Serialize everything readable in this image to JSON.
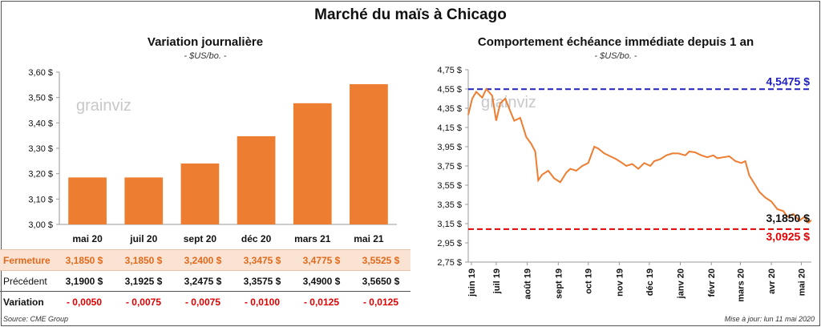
{
  "title": "Marché du maïs à Chicago",
  "left": {
    "title": "Variation journalière",
    "units": "- $US/bo. -",
    "watermark": "grainviz"
  },
  "right": {
    "title": "Comportement échéance immédiate depuis 1 an",
    "units": "- $US/bo. -",
    "watermark": "grainviz"
  },
  "table": {
    "rows": [
      {
        "label": "Fermeture",
        "values": [
          "3,1850 $",
          "3,1850 $",
          "3,2400 $",
          "3,3475 $",
          "3,4775 $",
          "3,5525 $"
        ]
      },
      {
        "label": "Précédent",
        "values": [
          "3,1900 $",
          "3,1925 $",
          "3,2475 $",
          "3,3575 $",
          "3,4900 $",
          "3,5650 $"
        ]
      },
      {
        "label": "Variation",
        "values": [
          "- 0,0050",
          "- 0,0075",
          "- 0,0075",
          "- 0,0100",
          "- 0,0125",
          "- 0,0125"
        ]
      }
    ]
  },
  "source": "Source: CME Group",
  "updated": "Mise à jour: lun 11 mai 2020",
  "colors": {
    "bar": "#ed7d31",
    "line": "#ed7d31",
    "high_line": "#2020c0",
    "low_line": "#e00000",
    "close_row_bg": "#fbe3d3"
  },
  "chart_data": [
    {
      "type": "bar",
      "title": "Variation journalière",
      "categories": [
        "mai 20",
        "juil 20",
        "sept 20",
        "déc 20",
        "mars 21",
        "mai 21"
      ],
      "values": [
        3.185,
        3.185,
        3.24,
        3.3475,
        3.4775,
        3.5525
      ],
      "ylim": [
        3.0,
        3.6
      ],
      "yticks": [
        "3,00 $",
        "3,10 $",
        "3,20 $",
        "3,30 $",
        "3,40 $",
        "3,50 $",
        "3,60 $"
      ],
      "grid": false
    },
    {
      "type": "line",
      "title": "Comportement échéance immédiate depuis 1 an",
      "ylim": [
        2.75,
        4.75
      ],
      "yticks": [
        "2,75 $",
        "2,95 $",
        "3,15 $",
        "3,35 $",
        "3,55 $",
        "3,75 $",
        "3,95 $",
        "4,15 $",
        "4,35 $",
        "4,55 $",
        "4,75 $"
      ],
      "xticks": [
        "juin 19",
        "juil 19",
        "août 19",
        "sept 19",
        "oct 19",
        "nov 19",
        "déc 19",
        "janv 20",
        "févr 20",
        "mars 20",
        "avr 20",
        "mai 20"
      ],
      "x": [
        "2019-06-03",
        "2019-06-07",
        "2019-06-11",
        "2019-06-17",
        "2019-06-21",
        "2019-06-27",
        "2019-07-01",
        "2019-07-05",
        "2019-07-10",
        "2019-07-15",
        "2019-07-19",
        "2019-07-25",
        "2019-07-31",
        "2019-08-05",
        "2019-08-09",
        "2019-08-12",
        "2019-08-16",
        "2019-08-22",
        "2019-08-28",
        "2019-09-03",
        "2019-09-09",
        "2019-09-13",
        "2019-09-19",
        "2019-09-25",
        "2019-10-01",
        "2019-10-07",
        "2019-10-11",
        "2019-10-17",
        "2019-10-23",
        "2019-10-29",
        "2019-11-04",
        "2019-11-08",
        "2019-11-14",
        "2019-11-20",
        "2019-11-26",
        "2019-12-02",
        "2019-12-06",
        "2019-12-12",
        "2019-12-18",
        "2019-12-24",
        "2019-12-30",
        "2020-01-06",
        "2020-01-10",
        "2020-01-16",
        "2020-01-22",
        "2020-01-28",
        "2020-02-03",
        "2020-02-07",
        "2020-02-13",
        "2020-02-19",
        "2020-02-25",
        "2020-03-02",
        "2020-03-06",
        "2020-03-10",
        "2020-03-16",
        "2020-03-20",
        "2020-03-26",
        "2020-04-01",
        "2020-04-07",
        "2020-04-13",
        "2020-04-17",
        "2020-04-23",
        "2020-04-29",
        "2020-05-04",
        "2020-05-08",
        "2020-05-11"
      ],
      "values": [
        4.28,
        4.45,
        4.52,
        4.46,
        4.55,
        4.48,
        4.22,
        4.4,
        4.45,
        4.32,
        4.22,
        4.25,
        4.05,
        3.98,
        3.9,
        3.6,
        3.66,
        3.7,
        3.62,
        3.58,
        3.68,
        3.72,
        3.7,
        3.75,
        3.78,
        3.95,
        3.93,
        3.88,
        3.85,
        3.82,
        3.78,
        3.75,
        3.77,
        3.72,
        3.78,
        3.75,
        3.8,
        3.82,
        3.86,
        3.88,
        3.88,
        3.86,
        3.9,
        3.89,
        3.86,
        3.84,
        3.86,
        3.83,
        3.84,
        3.85,
        3.8,
        3.78,
        3.8,
        3.65,
        3.55,
        3.48,
        3.42,
        3.38,
        3.3,
        3.28,
        3.22,
        3.25,
        3.18,
        3.22,
        3.16,
        3.185
      ],
      "reference_lines": [
        {
          "label": "4,5475 $",
          "value": 4.5475
        },
        {
          "label": "3,0925 $",
          "value": 3.0925
        }
      ],
      "last_label": "3,1850 $",
      "grid": false
    }
  ]
}
